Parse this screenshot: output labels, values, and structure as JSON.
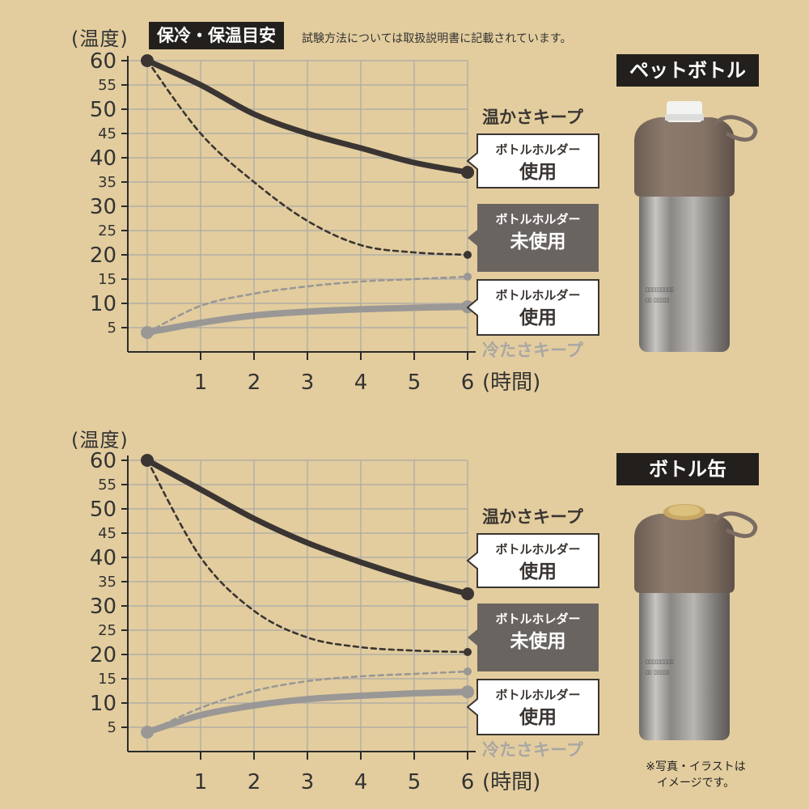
{
  "header": {
    "heading": "保冷・保温目安",
    "note": "試験方法については取扱説明書に記載されています。"
  },
  "axis": {
    "y_unit": "(温度)",
    "x_unit": "(時間)"
  },
  "colors": {
    "background": "#e3cd9e",
    "grid": "#a8a8a8",
    "warm": "#3a3532",
    "cold": "#9a9896",
    "callout_dark": "#6a6461",
    "callout_light": "#ffffff"
  },
  "chart_data": [
    {
      "type": "line",
      "product": "ペットボトル",
      "xlabel": "(時間)",
      "ylabel": "(温度)",
      "xlim": [
        0,
        6
      ],
      "ylim": [
        0,
        60
      ],
      "x_ticks": [
        1,
        2,
        3,
        4,
        5,
        6
      ],
      "y_ticks": [
        60,
        55,
        50,
        45,
        40,
        35,
        30,
        25,
        20,
        15,
        10,
        5
      ],
      "grid": true,
      "section_labels": {
        "warm": "温かさキープ",
        "cold": "冷たさキープ"
      },
      "series": [
        {
          "group": "warm",
          "style": "solid",
          "x": [
            0,
            1,
            2,
            3,
            4,
            5,
            6
          ],
          "y": [
            60,
            55,
            49,
            45,
            42,
            39,
            37
          ],
          "label_top": "ボトルホルダー",
          "label_bottom": "使用"
        },
        {
          "group": "warm",
          "style": "dashed",
          "x": [
            0,
            1,
            2,
            3,
            4,
            5,
            6
          ],
          "y": [
            60,
            45,
            35,
            27,
            22,
            20.5,
            20
          ],
          "label_top": "ボトルホルダー",
          "label_bottom": "未使用"
        },
        {
          "group": "cold",
          "style": "dashed",
          "x": [
            0,
            1,
            2,
            3,
            4,
            5,
            6
          ],
          "y": [
            4,
            9.5,
            12,
            13.5,
            14.5,
            15,
            15.5
          ]
        },
        {
          "group": "cold",
          "style": "solid",
          "x": [
            0,
            1,
            2,
            3,
            4,
            5,
            6
          ],
          "y": [
            4,
            6,
            7.5,
            8.3,
            8.8,
            9.1,
            9.3
          ],
          "label_top": "ボトルホルダー",
          "label_bottom": "使用"
        }
      ]
    },
    {
      "type": "line",
      "product": "ボトル缶",
      "xlabel": "(時間)",
      "ylabel": "(温度)",
      "xlim": [
        0,
        6
      ],
      "ylim": [
        0,
        60
      ],
      "x_ticks": [
        1,
        2,
        3,
        4,
        5,
        6
      ],
      "y_ticks": [
        60,
        55,
        50,
        45,
        40,
        35,
        30,
        25,
        20,
        15,
        10,
        5
      ],
      "grid": true,
      "section_labels": {
        "warm": "温かさキープ",
        "cold": "冷たさキープ"
      },
      "series": [
        {
          "group": "warm",
          "style": "solid",
          "x": [
            0,
            1,
            2,
            3,
            4,
            5,
            6
          ],
          "y": [
            60,
            54,
            48,
            43,
            39,
            35.5,
            32.5
          ],
          "label_top": "ボトルホルダー",
          "label_bottom": "使用"
        },
        {
          "group": "warm",
          "style": "dashed",
          "x": [
            0,
            1,
            2,
            3,
            4,
            5,
            6
          ],
          "y": [
            60,
            40,
            29,
            23.5,
            21.5,
            20.8,
            20.5
          ],
          "label_top": "ボトルホレダー",
          "label_bottom": "未使用"
        },
        {
          "group": "cold",
          "style": "dashed",
          "x": [
            0,
            1,
            2,
            3,
            4,
            5,
            6
          ],
          "y": [
            4,
            9,
            12.5,
            14.5,
            15.5,
            16,
            16.5
          ]
        },
        {
          "group": "cold",
          "style": "solid",
          "x": [
            0,
            1,
            2,
            3,
            4,
            5,
            6
          ],
          "y": [
            4,
            7.5,
            9.5,
            10.8,
            11.5,
            12,
            12.3
          ],
          "label_top": "ボトルホルダー",
          "label_bottom": "使用"
        }
      ]
    }
  ],
  "products": [
    {
      "title": "ペットボトル",
      "cap": "white"
    },
    {
      "title": "ボトル缶",
      "cap": "gold"
    }
  ],
  "footnote": {
    "line1": "※写真・イラストは",
    "line2": "イメージです。"
  }
}
